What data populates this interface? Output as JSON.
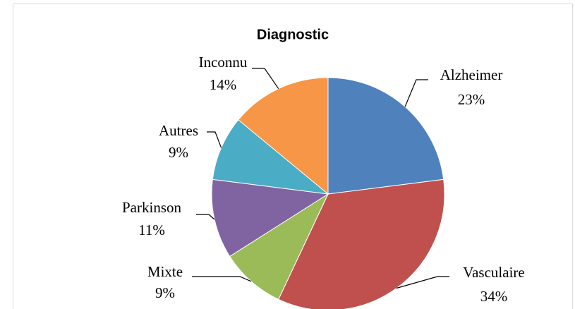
{
  "chart_data": {
    "type": "pie",
    "title": "Diagnostic",
    "categories": [
      "Alzheimer",
      "Vasculaire",
      "Mixte",
      "Parkinson",
      "Autres",
      "Inconnu"
    ],
    "values": [
      23,
      34,
      9,
      11,
      9,
      14
    ],
    "value_labels": [
      "23%",
      "34%",
      "9%",
      "11%",
      "9%",
      "14%"
    ],
    "colors": [
      "#4f81bd",
      "#c0504d",
      "#9bbb59",
      "#8064a2",
      "#4bacc6",
      "#f79646"
    ]
  }
}
